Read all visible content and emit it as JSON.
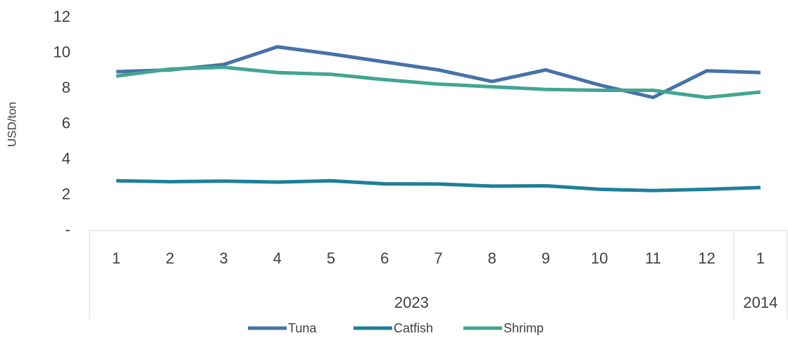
{
  "chart_data": {
    "type": "line",
    "y_label": "USD/ton",
    "categories": [
      "1",
      "2",
      "3",
      "4",
      "5",
      "6",
      "7",
      "8",
      "9",
      "10",
      "11",
      "12",
      "1"
    ],
    "groups": [
      {
        "label": "2023",
        "span": 12
      },
      {
        "label": "2014",
        "span": 1
      }
    ],
    "series": [
      {
        "name": "Tuna",
        "color": "#4672a8",
        "values": [
          8.95,
          9.05,
          9.35,
          10.35,
          9.95,
          9.5,
          9.05,
          8.4,
          9.05,
          8.2,
          7.5,
          9.0,
          8.9
        ]
      },
      {
        "name": "Catfish",
        "color": "#1f7f99",
        "values": [
          2.8,
          2.75,
          2.78,
          2.73,
          2.8,
          2.63,
          2.62,
          2.5,
          2.52,
          2.32,
          2.25,
          2.32,
          2.42
        ]
      },
      {
        "name": "Shrimp",
        "color": "#43a592",
        "values": [
          8.7,
          9.1,
          9.2,
          8.9,
          8.8,
          8.5,
          8.25,
          8.1,
          7.95,
          7.9,
          7.9,
          7.5,
          7.8
        ]
      }
    ],
    "ylim": [
      0,
      12
    ],
    "yticks": [
      {
        "value": 0,
        "label": "-"
      },
      2,
      4,
      6,
      8,
      10,
      12
    ],
    "grid": false
  }
}
